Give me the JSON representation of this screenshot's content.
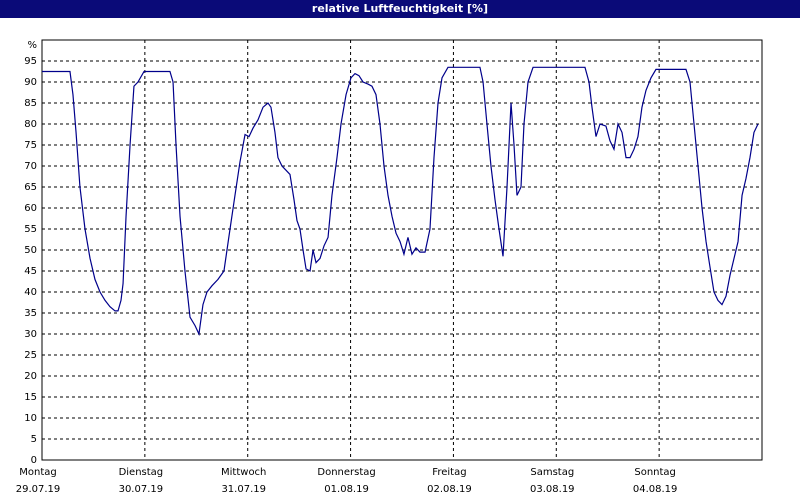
{
  "chart_data": {
    "type": "line",
    "title": "relative Luftfeuchtigkeit [%]",
    "y_label": "%",
    "xlim": [
      0,
      7
    ],
    "ylim": [
      0,
      100
    ],
    "xticks": [
      {
        "value": 0,
        "label": "Montag",
        "sublabel": "29.07.19"
      },
      {
        "value": 1,
        "label": "Dienstag",
        "sublabel": "30.07.19"
      },
      {
        "value": 2,
        "label": "Mittwoch",
        "sublabel": "31.07.19"
      },
      {
        "value": 3,
        "label": "Donnerstag",
        "sublabel": "01.08.19"
      },
      {
        "value": 4,
        "label": "Freitag",
        "sublabel": "02.08.19"
      },
      {
        "value": 5,
        "label": "Samstag",
        "sublabel": "03.08.19"
      },
      {
        "value": 6,
        "label": "Sonntag",
        "sublabel": "04.08.19"
      }
    ],
    "yticks": [
      0,
      5,
      10,
      15,
      20,
      25,
      30,
      35,
      40,
      45,
      50,
      55,
      60,
      65,
      70,
      75,
      80,
      85,
      90,
      95
    ],
    "grid": true,
    "series": [
      {
        "name": "relative Luftfeuchtigkeit",
        "color": "#00008b",
        "x": [
          0,
          0.272,
          0.301,
          0.331,
          0.369,
          0.418,
          0.467,
          0.515,
          0.564,
          0.613,
          0.661,
          0.71,
          0.739,
          0.768,
          0.788,
          0.817,
          0.856,
          0.894,
          0.933,
          0.992,
          1.244,
          1.274,
          1.303,
          1.342,
          1.39,
          1.439,
          1.488,
          1.526,
          1.565,
          1.604,
          1.653,
          1.711,
          1.769,
          1.828,
          1.876,
          1.925,
          1.974,
          2.013,
          2.051,
          2.1,
          2.149,
          2.197,
          2.226,
          2.265,
          2.294,
          2.333,
          2.372,
          2.411,
          2.45,
          2.479,
          2.508,
          2.538,
          2.567,
          2.606,
          2.635,
          2.664,
          2.703,
          2.742,
          2.781,
          2.819,
          2.868,
          2.907,
          2.956,
          3.004,
          3.043,
          3.082,
          3.121,
          3.169,
          3.208,
          3.247,
          3.286,
          3.325,
          3.364,
          3.403,
          3.442,
          3.481,
          3.519,
          3.558,
          3.597,
          3.636,
          3.675,
          3.724,
          3.772,
          3.811,
          3.85,
          3.889,
          3.947,
          4.006,
          4.258,
          4.288,
          4.326,
          4.365,
          4.404,
          4.443,
          4.482,
          4.521,
          4.56,
          4.589,
          4.618,
          4.657,
          4.686,
          4.725,
          4.774,
          5.279,
          5.318,
          5.347,
          5.386,
          5.425,
          5.483,
          5.522,
          5.561,
          5.6,
          5.639,
          5.678,
          5.717,
          5.756,
          5.794,
          5.833,
          5.872,
          5.921,
          5.969,
          6.018,
          6.261,
          6.3,
          6.339,
          6.378,
          6.417,
          6.456,
          6.494,
          6.533,
          6.572,
          6.611,
          6.65,
          6.689,
          6.728,
          6.767,
          6.806,
          6.844,
          6.883,
          6.922,
          6.961
        ],
        "values": [
          92.5,
          92.5,
          87,
          78,
          65,
          55,
          48,
          43,
          40,
          38,
          36.5,
          35.5,
          35.5,
          38,
          42,
          58,
          75,
          89,
          90,
          92.5,
          92.5,
          90,
          75,
          58,
          45,
          34,
          32,
          30,
          37,
          40,
          41.5,
          43,
          45,
          55,
          63,
          71,
          77.5,
          77,
          79,
          81,
          84,
          85,
          84,
          78,
          72,
          70,
          69,
          68,
          62,
          57,
          55,
          50,
          45.5,
          45,
          50,
          47,
          48,
          51,
          53,
          63,
          72,
          80,
          87,
          91,
          92,
          91.5,
          90,
          89.5,
          89,
          87,
          80,
          70,
          63,
          58,
          54,
          52,
          49,
          53,
          49,
          50.5,
          49.5,
          49.5,
          55,
          72,
          85,
          91,
          93.5,
          93.5,
          93.5,
          90,
          80,
          70,
          62,
          55,
          48.5,
          65,
          85,
          75,
          63,
          65,
          80,
          90,
          93.5,
          93.5,
          90,
          84,
          77,
          80,
          79.5,
          76,
          74,
          80,
          78,
          72,
          72,
          74,
          77,
          84,
          88,
          91,
          93,
          93,
          93,
          90,
          80,
          70,
          60,
          52,
          46,
          40,
          38,
          37,
          39,
          44,
          48,
          52,
          63,
          67,
          72,
          78,
          80
        ]
      }
    ]
  }
}
